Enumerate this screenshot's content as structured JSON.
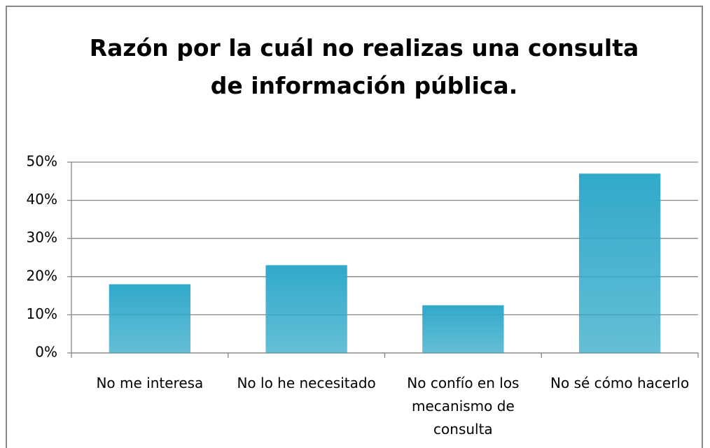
{
  "chart_data": {
    "type": "bar",
    "title": "Razón por la cuál no realizas una consulta de información  pública.",
    "categories": [
      "No me interesa",
      "No lo he necesitado",
      "No confío en los mecanismo de consulta",
      "No sé cómo hacerlo"
    ],
    "values": [
      18,
      23,
      12.5,
      47
    ],
    "color": "#31a9c9",
    "ylim": [
      0,
      50
    ],
    "yticks": [
      {
        "value": 0,
        "label": "0%"
      },
      {
        "value": 10,
        "label": "10%"
      },
      {
        "value": 20,
        "label": "20%"
      },
      {
        "value": 30,
        "label": "30%"
      },
      {
        "value": 40,
        "label": "40%"
      },
      {
        "value": 50,
        "label": "50%"
      }
    ],
    "grid": true
  }
}
